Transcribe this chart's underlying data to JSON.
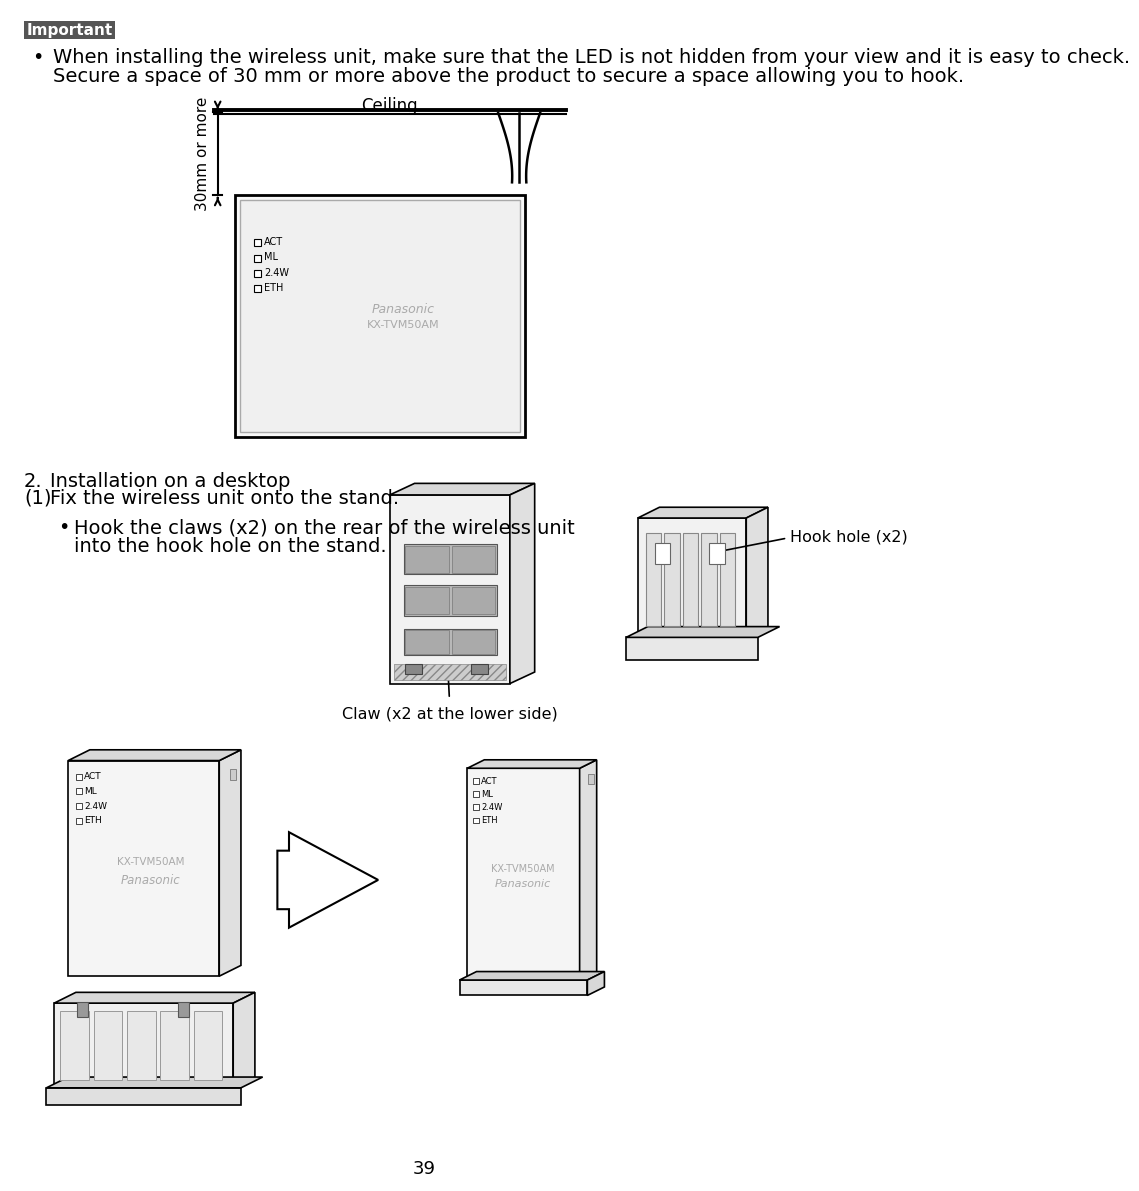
{
  "page_number": "39",
  "bg_color": "#ffffff",
  "important_label": "Important",
  "important_bg": "#555555",
  "important_text_color": "#ffffff",
  "bullet_text_line1": "When installing the wireless unit, make sure that the LED is not hidden from your view and it is easy to check.",
  "bullet_text_line2": "Secure a space of 30 mm or more above the product to secure a space allowing you to hook.",
  "ceiling_label": "Ceiling",
  "dimension_label": "30mm or more",
  "section_num": "2.",
  "section_title": "Installation on a desktop",
  "step1_label": "(1)  Fix the wireless unit onto the stand.",
  "bullet2_line1": "Hook the claws (x2) on the rear of the wireless unit",
  "bullet2_line2": "into the hook hole on the stand.",
  "claw_label": "Claw (x2 at the lower side)",
  "hook_label": "Hook hole (x2)",
  "line_color": "#000000",
  "mid_gray": "#999999",
  "light_gray": "#cccccc",
  "very_light_gray": "#e8e8e8",
  "fs_body": 14,
  "fs_small": 12
}
